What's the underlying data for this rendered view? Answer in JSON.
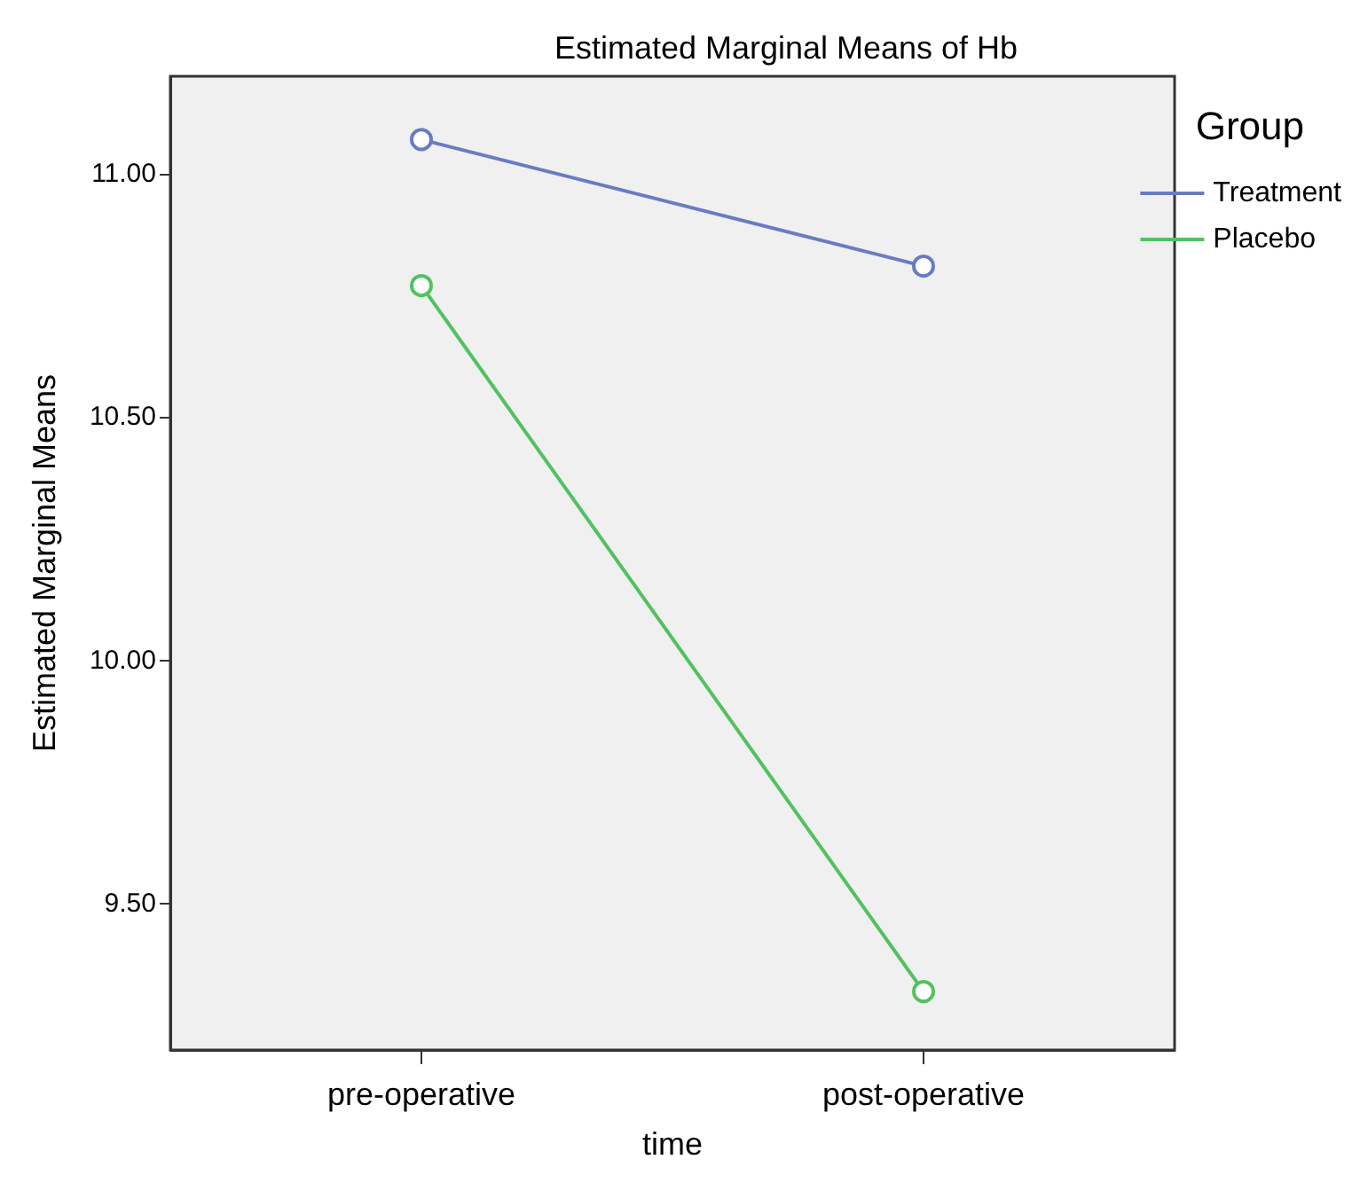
{
  "chart_data": {
    "type": "line",
    "title": "Estimated Marginal Means of Hb",
    "xlabel": "time",
    "ylabel": "Estimated Marginal Means",
    "legend_title": "Group",
    "categories": [
      "pre-operative",
      "post-operative"
    ],
    "series": [
      {
        "name": "Treatment",
        "color": "#6a7bc4",
        "values": [
          11.07,
          10.81
        ]
      },
      {
        "name": "Placebo",
        "color": "#52c160",
        "values": [
          10.77,
          9.32
        ]
      }
    ],
    "ylim": [
      9.2,
      11.2
    ],
    "yticks": [
      {
        "value": 9.5,
        "label": "9.50"
      },
      {
        "value": 10,
        "label": "10.00"
      },
      {
        "value": 10.5,
        "label": "10.50"
      },
      {
        "value": 11,
        "label": "11.00"
      }
    ],
    "grid": false,
    "legend": "top right",
    "marker": "circle",
    "line_style": "solid"
  }
}
